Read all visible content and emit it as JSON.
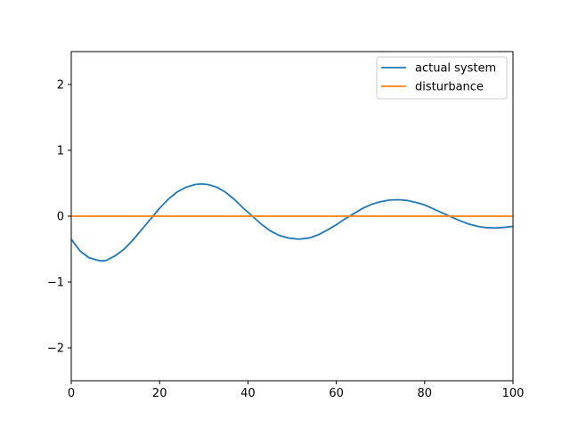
{
  "chart_data": {
    "type": "line",
    "title": "",
    "xlabel": "",
    "ylabel": "",
    "xlim": [
      0,
      100
    ],
    "ylim": [
      -2.5,
      2.5
    ],
    "x_ticks": [
      0,
      20,
      40,
      60,
      80,
      100
    ],
    "x_tick_labels": [
      "0",
      "20",
      "40",
      "60",
      "80",
      "100"
    ],
    "y_ticks": [
      -2,
      -1,
      0,
      1,
      2
    ],
    "y_tick_labels": [
      "−2",
      "−1",
      "0",
      "1",
      "2"
    ],
    "grid": false,
    "legend_position": "top-right",
    "series": [
      {
        "name": "actual system",
        "color": "#1f77b4",
        "x": [
          0,
          2,
          4,
          6,
          7,
          8,
          10,
          12,
          14,
          16,
          18,
          20,
          22,
          24,
          26,
          28,
          29.5,
          31,
          33,
          35,
          37,
          39,
          41,
          43,
          45,
          47,
          49,
          51.5,
          54,
          56,
          58,
          60,
          62,
          64,
          66,
          68,
          70,
          72,
          74,
          76,
          78,
          80,
          82,
          84,
          86,
          88,
          90,
          92,
          94,
          96,
          98,
          100
        ],
        "y": [
          -0.35,
          -0.53,
          -0.63,
          -0.67,
          -0.68,
          -0.67,
          -0.6,
          -0.5,
          -0.36,
          -0.2,
          -0.04,
          0.12,
          0.26,
          0.37,
          0.44,
          0.48,
          0.49,
          0.48,
          0.44,
          0.36,
          0.25,
          0.12,
          0.0,
          -0.12,
          -0.22,
          -0.29,
          -0.33,
          -0.35,
          -0.33,
          -0.28,
          -0.21,
          -0.13,
          -0.04,
          0.04,
          0.12,
          0.18,
          0.22,
          0.245,
          0.25,
          0.24,
          0.21,
          0.17,
          0.11,
          0.05,
          -0.01,
          -0.07,
          -0.12,
          -0.155,
          -0.175,
          -0.18,
          -0.17,
          -0.155
        ]
      },
      {
        "name": "disturbance",
        "color": "#ff7f0e",
        "x": [
          0,
          100
        ],
        "y": [
          0,
          0
        ]
      }
    ]
  }
}
